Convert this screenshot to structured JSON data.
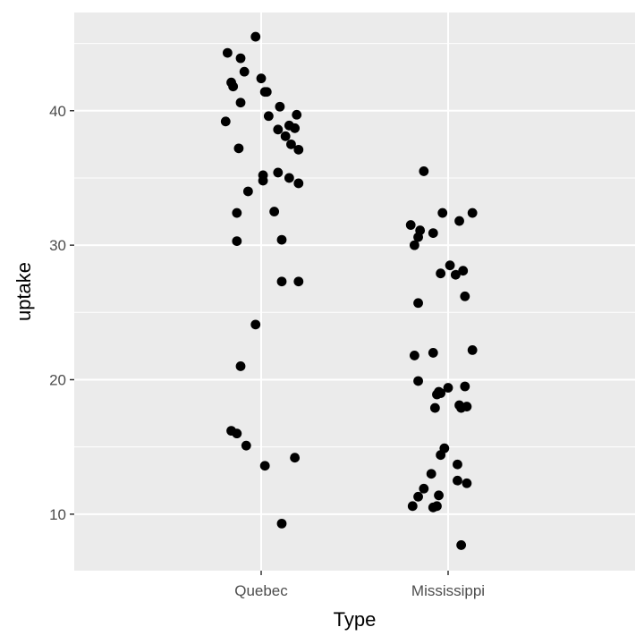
{
  "chart_data": {
    "type": "scatter",
    "title": "",
    "xlabel": "Type",
    "ylabel": "uptake",
    "x_scale": "categorical",
    "categories": [
      "Quebec",
      "Mississippi"
    ],
    "ylim": [
      5.8,
      47.3
    ],
    "y_ticks": [
      10,
      20,
      30,
      40
    ],
    "y_tick_labels": [
      "10",
      "20",
      "30",
      "40"
    ],
    "grid": true,
    "legend": "none",
    "colors": {
      "panel": "#ebebeb",
      "grid": "#ffffff",
      "point": "#000000"
    },
    "series": [
      {
        "category": "Quebec",
        "points": [
          [
            -0.18,
            44.3
          ],
          [
            -0.11,
            43.9
          ],
          [
            -0.03,
            45.5
          ],
          [
            -0.09,
            42.9
          ],
          [
            -0.16,
            42.1
          ],
          [
            -0.15,
            41.8
          ],
          [
            0.0,
            42.4
          ],
          [
            0.02,
            41.4
          ],
          [
            0.03,
            41.4
          ],
          [
            -0.11,
            40.6
          ],
          [
            0.1,
            40.3
          ],
          [
            0.19,
            39.7
          ],
          [
            -0.19,
            39.2
          ],
          [
            0.04,
            39.6
          ],
          [
            0.15,
            38.9
          ],
          [
            0.18,
            38.7
          ],
          [
            0.09,
            38.6
          ],
          [
            0.13,
            38.1
          ],
          [
            0.16,
            37.5
          ],
          [
            0.2,
            37.1
          ],
          [
            -0.12,
            37.2
          ],
          [
            0.09,
            35.4
          ],
          [
            0.01,
            35.2
          ],
          [
            0.01,
            34.8
          ],
          [
            0.15,
            35.0
          ],
          [
            0.2,
            34.6
          ],
          [
            -0.07,
            34.0
          ],
          [
            -0.13,
            32.4
          ],
          [
            0.07,
            32.5
          ],
          [
            -0.13,
            30.3
          ],
          [
            0.11,
            30.4
          ],
          [
            0.11,
            27.3
          ],
          [
            0.2,
            27.3
          ],
          [
            -0.03,
            24.1
          ],
          [
            -0.11,
            21.0
          ],
          [
            -0.16,
            16.2
          ],
          [
            -0.13,
            16.0
          ],
          [
            -0.08,
            15.1
          ],
          [
            0.02,
            13.6
          ],
          [
            0.18,
            14.2
          ],
          [
            0.11,
            9.3
          ]
        ]
      },
      {
        "category": "Mississippi",
        "points": [
          [
            -0.13,
            35.5
          ],
          [
            -0.2,
            31.5
          ],
          [
            -0.15,
            31.1
          ],
          [
            -0.16,
            30.6
          ],
          [
            -0.18,
            30.0
          ],
          [
            -0.08,
            30.9
          ],
          [
            -0.03,
            32.4
          ],
          [
            0.06,
            31.8
          ],
          [
            0.13,
            32.4
          ],
          [
            0.01,
            28.5
          ],
          [
            -0.04,
            27.9
          ],
          [
            0.04,
            27.8
          ],
          [
            0.08,
            28.1
          ],
          [
            0.09,
            26.2
          ],
          [
            -0.16,
            25.7
          ],
          [
            0.13,
            22.2
          ],
          [
            -0.18,
            21.8
          ],
          [
            -0.08,
            22.0
          ],
          [
            -0.16,
            19.9
          ],
          [
            0.0,
            19.4
          ],
          [
            -0.05,
            19.1
          ],
          [
            -0.06,
            18.9
          ],
          [
            -0.04,
            19.0
          ],
          [
            0.09,
            19.5
          ],
          [
            -0.07,
            17.9
          ],
          [
            0.06,
            18.1
          ],
          [
            0.07,
            17.9
          ],
          [
            0.1,
            18.0
          ],
          [
            -0.02,
            14.9
          ],
          [
            -0.04,
            14.4
          ],
          [
            0.05,
            13.7
          ],
          [
            -0.09,
            13.0
          ],
          [
            0.05,
            12.5
          ],
          [
            0.1,
            12.3
          ],
          [
            -0.13,
            11.9
          ],
          [
            -0.16,
            11.3
          ],
          [
            -0.05,
            11.4
          ],
          [
            -0.19,
            10.6
          ],
          [
            -0.08,
            10.5
          ],
          [
            -0.06,
            10.6
          ],
          [
            0.07,
            7.7
          ]
        ]
      }
    ]
  }
}
